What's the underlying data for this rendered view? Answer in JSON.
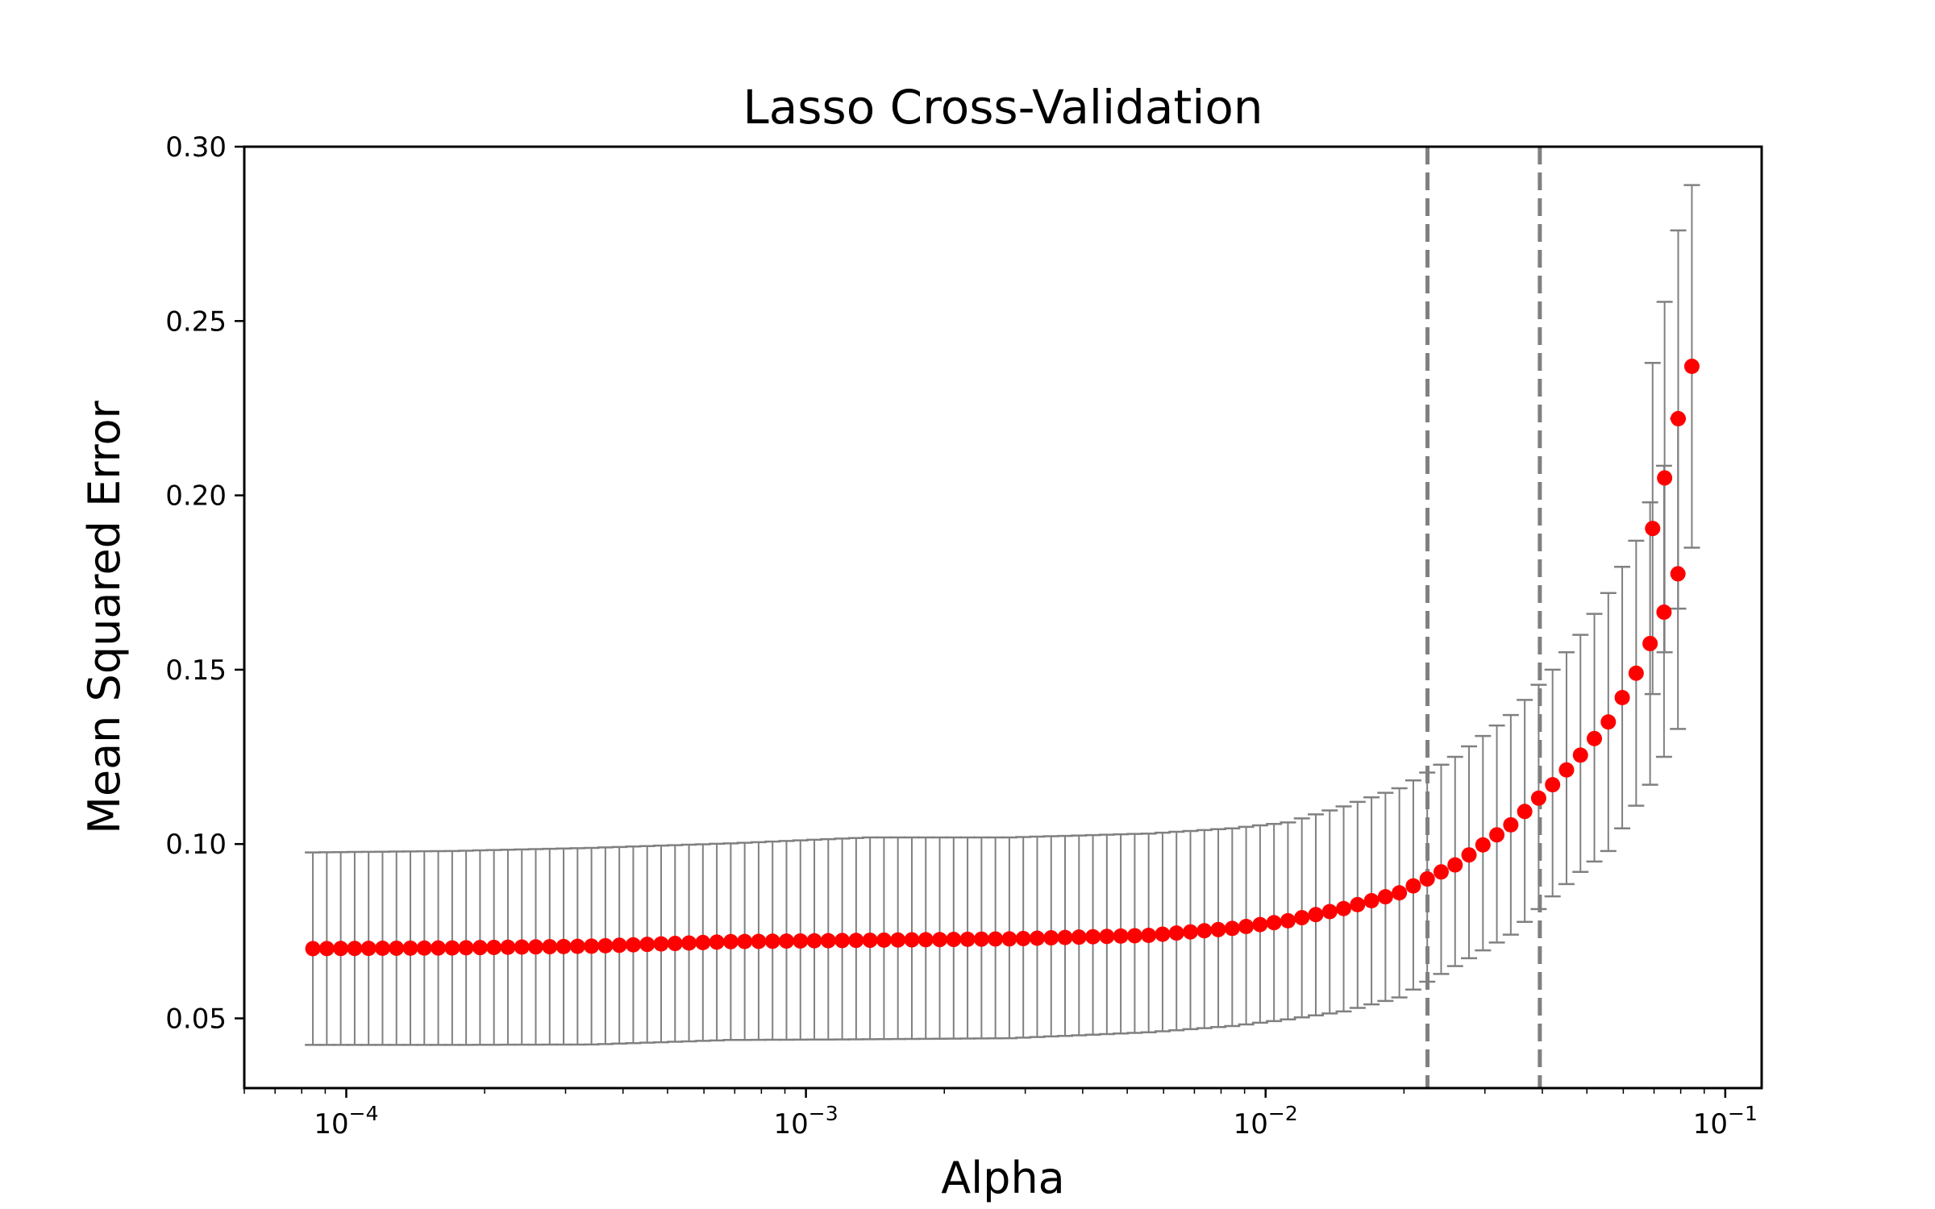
{
  "chart_data": {
    "type": "scatter",
    "title": "Lasso Cross-Validation",
    "xlabel": "Alpha",
    "ylabel": "Mean Squared Error",
    "xscale": "log",
    "xlim": [
      6e-05,
      0.12
    ],
    "ylim": [
      0.03,
      0.3
    ],
    "grid": false,
    "legend": "none",
    "x_ticks": [
      {
        "value": 0.0001,
        "base": "10",
        "exp": "−4"
      },
      {
        "value": 0.001,
        "base": "10",
        "exp": "−3"
      },
      {
        "value": 0.01,
        "base": "10",
        "exp": "−2"
      },
      {
        "value": 0.1,
        "base": "10",
        "exp": "−1"
      }
    ],
    "y_ticks": [
      "0.05",
      "0.10",
      "0.15",
      "0.20",
      "0.25",
      "0.30"
    ],
    "alpha_range": [
      8.46e-05,
      0.0846
    ],
    "n_points": 100,
    "y_anchors": [
      {
        "i": 0,
        "mean": 0.07,
        "lower": 0.0424,
        "upper": 0.0976
      },
      {
        "i": 10,
        "mean": 0.0702,
        "lower": 0.0424,
        "upper": 0.098
      },
      {
        "i": 20,
        "mean": 0.0707,
        "lower": 0.0425,
        "upper": 0.0989
      },
      {
        "i": 30,
        "mean": 0.072,
        "lower": 0.0438,
        "upper": 0.1002
      },
      {
        "i": 40,
        "mean": 0.0724,
        "lower": 0.044,
        "upper": 0.1019
      },
      {
        "i": 50,
        "mean": 0.0728,
        "lower": 0.0443,
        "upper": 0.1019
      },
      {
        "i": 60,
        "mean": 0.0738,
        "lower": 0.046,
        "upper": 0.103
      },
      {
        "i": 66,
        "mean": 0.0758,
        "lower": 0.0478,
        "upper": 0.1045
      },
      {
        "i": 70,
        "mean": 0.078,
        "lower": 0.0497,
        "upper": 0.1062
      },
      {
        "i": 74,
        "mean": 0.0815,
        "lower": 0.052,
        "upper": 0.1108
      },
      {
        "i": 78,
        "mean": 0.086,
        "lower": 0.056,
        "upper": 0.116
      },
      {
        "i": 82,
        "mean": 0.094,
        "lower": 0.065,
        "upper": 0.125
      },
      {
        "i": 86,
        "mean": 0.1055,
        "lower": 0.074,
        "upper": 0.137
      },
      {
        "i": 89,
        "mean": 0.117,
        "lower": 0.085,
        "upper": 0.15
      },
      {
        "i": 91,
        "mean": 0.1255,
        "lower": 0.092,
        "upper": 0.16
      },
      {
        "i": 93,
        "mean": 0.135,
        "lower": 0.098,
        "upper": 0.172
      },
      {
        "i": 95,
        "mean": 0.149,
        "lower": 0.111,
        "upper": 0.187
      },
      {
        "i": 96,
        "mean": 0.1575,
        "lower": 0.117,
        "upper": 0.198
      },
      {
        "i": 97,
        "mean": 0.1665,
        "lower": 0.125,
        "upper": 0.2085
      },
      {
        "i": 98,
        "mean": 0.1775,
        "lower": 0.133,
        "upper": 0.222
      },
      {
        "i": 99,
        "mean": 0.237,
        "lower": 0.185,
        "upper": 0.289
      }
    ],
    "extra_points": [
      {
        "x": 0.0695,
        "mean": 0.1905,
        "lower": 0.143,
        "upper": 0.238
      },
      {
        "x": 0.0738,
        "mean": 0.205,
        "lower": 0.155,
        "upper": 0.2555
      },
      {
        "x": 0.079,
        "mean": 0.222,
        "lower": 0.1675,
        "upper": 0.276
      }
    ],
    "vlines": [
      {
        "x": 0.0225,
        "style": "dashed"
      },
      {
        "x": 0.0395,
        "style": "dashed"
      }
    ],
    "colors": {
      "marker": "#ff0000",
      "errorbar": "#808080",
      "vline": "#808080",
      "axes": "#000000"
    }
  }
}
